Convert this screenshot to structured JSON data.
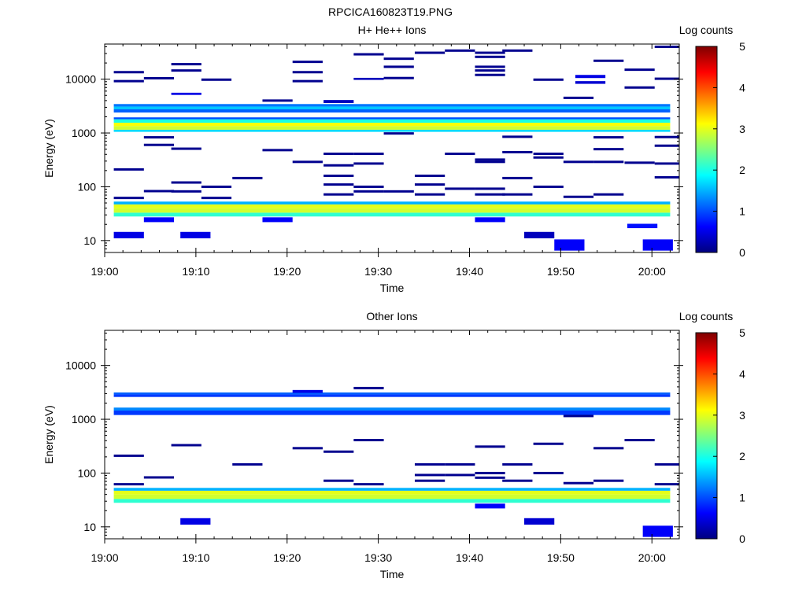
{
  "figure": {
    "title": "RPCICA160823T19.PNG",
    "colorbar_stops": [
      "#00007f",
      "#0000ff",
      "#007fff",
      "#00ffff",
      "#7fff7f",
      "#ffff00",
      "#ff7f00",
      "#ff0000",
      "#7f0000"
    ]
  },
  "chart_data": [
    {
      "type": "heatmap",
      "title": "H+ He++ Ions",
      "xlabel": "Time",
      "ylabel": "Energy (eV)",
      "x_ticks": [
        "19:00",
        "19:10",
        "19:20",
        "19:30",
        "19:40",
        "19:50",
        "20:00"
      ],
      "x_range_minutes": [
        0,
        63
      ],
      "y_scale": "log",
      "y_ticks": [
        "10",
        "100",
        "1000",
        "10000"
      ],
      "y_range": [
        6,
        45000
      ],
      "colorbar_label": "Log counts",
      "colorbar_ticks": [
        "0",
        "1",
        "2",
        "3",
        "4",
        "5"
      ],
      "colorbar_range": [
        0,
        5
      ],
      "bands": [
        {
          "e_low": 28,
          "e_high": 33,
          "level": 2.1
        },
        {
          "e_low": 33,
          "e_high": 40,
          "level": 2.9
        },
        {
          "e_low": 40,
          "e_high": 47,
          "level": 3.0
        },
        {
          "e_low": 47,
          "e_high": 53,
          "level": 1.5
        },
        {
          "e_low": 1050,
          "e_high": 1150,
          "level": 1.7
        },
        {
          "e_low": 1150,
          "e_high": 1350,
          "level": 2.9
        },
        {
          "e_low": 1350,
          "e_high": 1550,
          "level": 3.1
        },
        {
          "e_low": 1550,
          "e_high": 1800,
          "level": 2.0
        },
        {
          "e_low": 1800,
          "e_high": 1950,
          "level": 1.0
        },
        {
          "e_low": 2400,
          "e_high": 2750,
          "level": 1.1
        },
        {
          "e_low": 2750,
          "e_high": 3100,
          "level": 1.6
        },
        {
          "e_low": 3100,
          "e_high": 3450,
          "level": 1.2
        }
      ],
      "cells": [
        {
          "t": 1,
          "e_low": 11,
          "e_high": 14.5,
          "level": 0.5
        },
        {
          "t": 4.3,
          "e_low": 22,
          "e_high": 27,
          "level": 0.6
        },
        {
          "t": 8.3,
          "e_low": 11,
          "e_high": 14.5,
          "level": 0.5
        },
        {
          "t": 17.3,
          "e_low": 22,
          "e_high": 27,
          "level": 0.6
        },
        {
          "t": 40.6,
          "e_low": 22,
          "e_high": 27,
          "level": 0.6
        },
        {
          "t": 46,
          "e_low": 11,
          "e_high": 14.5,
          "level": 0.3
        },
        {
          "t": 49.3,
          "e_low": 6.5,
          "e_high": 10.5,
          "level": 0.6
        },
        {
          "t": 57.3,
          "e_low": 17,
          "e_high": 20.5,
          "level": 0.7
        },
        {
          "t": 59,
          "e_low": 6.5,
          "e_high": 10.5,
          "level": 0.6
        },
        {
          "t": 24,
          "e_low": 3600,
          "e_high": 4100,
          "level": 0.3
        },
        {
          "t": 51.6,
          "e_low": 10500,
          "e_high": 12000,
          "level": 0.5
        },
        {
          "t": 51.6,
          "e_low": 8200,
          "e_high": 9200,
          "level": 0.4
        },
        {
          "t": 7.3,
          "e_low": 5100,
          "e_high": 5600,
          "level": 0.5
        },
        {
          "t": 27.3,
          "e_low": 9700,
          "e_high": 10600,
          "level": 0.3
        }
      ],
      "dashes": [
        {
          "t": 1,
          "e": 13500
        },
        {
          "t": 1,
          "e": 9200
        },
        {
          "t": 1,
          "e": 210
        },
        {
          "t": 1,
          "e": 62
        },
        {
          "t": 4.3,
          "e": 10400
        },
        {
          "t": 4.3,
          "e": 830
        },
        {
          "t": 4.3,
          "e": 600
        },
        {
          "t": 4.3,
          "e": 83
        },
        {
          "t": 7.3,
          "e": 19000
        },
        {
          "t": 7.3,
          "e": 14500
        },
        {
          "t": 7.3,
          "e": 510
        },
        {
          "t": 7.3,
          "e": 120
        },
        {
          "t": 7.3,
          "e": 82
        },
        {
          "t": 10.6,
          "e": 9800
        },
        {
          "t": 10.6,
          "e": 100
        },
        {
          "t": 10.6,
          "e": 62
        },
        {
          "t": 14,
          "e": 145
        },
        {
          "t": 17.3,
          "e": 4000
        },
        {
          "t": 17.3,
          "e": 480
        },
        {
          "t": 20.6,
          "e": 21000
        },
        {
          "t": 20.6,
          "e": 13500
        },
        {
          "t": 20.6,
          "e": 9200
        },
        {
          "t": 20.6,
          "e": 290
        },
        {
          "t": 24,
          "e": 410
        },
        {
          "t": 24,
          "e": 250
        },
        {
          "t": 24,
          "e": 160
        },
        {
          "t": 24,
          "e": 110
        },
        {
          "t": 24,
          "e": 72
        },
        {
          "t": 27.3,
          "e": 29000
        },
        {
          "t": 27.3,
          "e": 410
        },
        {
          "t": 27.3,
          "e": 270
        },
        {
          "t": 27.3,
          "e": 100
        },
        {
          "t": 27.3,
          "e": 82
        },
        {
          "t": 30.6,
          "e": 24000
        },
        {
          "t": 30.6,
          "e": 17000
        },
        {
          "t": 30.6,
          "e": 10500
        },
        {
          "t": 30.6,
          "e": 980
        },
        {
          "t": 30.6,
          "e": 82
        },
        {
          "t": 34,
          "e": 31000
        },
        {
          "t": 34,
          "e": 160
        },
        {
          "t": 34,
          "e": 110
        },
        {
          "t": 34,
          "e": 72
        },
        {
          "t": 37.3,
          "e": 34000
        },
        {
          "t": 37.3,
          "e": 410
        },
        {
          "t": 37.3,
          "e": 92
        },
        {
          "t": 40.6,
          "e": 31000
        },
        {
          "t": 40.6,
          "e": 26000
        },
        {
          "t": 40.6,
          "e": 17000
        },
        {
          "t": 40.6,
          "e": 14500
        },
        {
          "t": 40.6,
          "e": 12000
        },
        {
          "t": 40.6,
          "e": 320
        },
        {
          "t": 40.6,
          "e": 290
        },
        {
          "t": 40.6,
          "e": 92
        },
        {
          "t": 40.6,
          "e": 72
        },
        {
          "t": 43.6,
          "e": 34000
        },
        {
          "t": 43.6,
          "e": 850
        },
        {
          "t": 43.6,
          "e": 440
        },
        {
          "t": 43.6,
          "e": 145
        },
        {
          "t": 43.6,
          "e": 72
        },
        {
          "t": 47,
          "e": 9800
        },
        {
          "t": 47,
          "e": 410
        },
        {
          "t": 47,
          "e": 350
        },
        {
          "t": 47,
          "e": 100
        },
        {
          "t": 50.3,
          "e": 4500
        },
        {
          "t": 50.3,
          "e": 290
        },
        {
          "t": 50.3,
          "e": 65
        },
        {
          "t": 53.6,
          "e": 22000
        },
        {
          "t": 53.6,
          "e": 830
        },
        {
          "t": 53.6,
          "e": 500
        },
        {
          "t": 53.6,
          "e": 290
        },
        {
          "t": 53.6,
          "e": 72
        },
        {
          "t": 57,
          "e": 15000
        },
        {
          "t": 57,
          "e": 7000
        },
        {
          "t": 57,
          "e": 280
        },
        {
          "t": 60.3,
          "e": 40000
        },
        {
          "t": 60.3,
          "e": 10200
        },
        {
          "t": 60.3,
          "e": 840
        },
        {
          "t": 60.3,
          "e": 580
        },
        {
          "t": 60.3,
          "e": 270
        },
        {
          "t": 60.3,
          "e": 150
        }
      ]
    },
    {
      "type": "heatmap",
      "title": "Other Ions",
      "xlabel": "Time",
      "ylabel": "Energy (eV)",
      "x_ticks": [
        "19:00",
        "19:10",
        "19:20",
        "19:30",
        "19:40",
        "19:50",
        "20:00"
      ],
      "x_range_minutes": [
        0,
        63
      ],
      "y_scale": "log",
      "y_ticks": [
        "10",
        "100",
        "1000",
        "10000"
      ],
      "y_range": [
        6,
        45000
      ],
      "colorbar_label": "Log counts",
      "colorbar_ticks": [
        "0",
        "1",
        "2",
        "3",
        "4",
        "5"
      ],
      "colorbar_range": [
        0,
        5
      ],
      "bands": [
        {
          "e_low": 28,
          "e_high": 33,
          "level": 2.1
        },
        {
          "e_low": 33,
          "e_high": 40,
          "level": 2.9
        },
        {
          "e_low": 40,
          "e_high": 47,
          "level": 3.0
        },
        {
          "e_low": 47,
          "e_high": 53,
          "level": 1.5
        },
        {
          "e_low": 1200,
          "e_high": 1450,
          "level": 0.9
        },
        {
          "e_low": 1450,
          "e_high": 1650,
          "level": 1.3
        },
        {
          "e_low": 2600,
          "e_high": 2900,
          "level": 0.9
        },
        {
          "e_low": 2900,
          "e_high": 3150,
          "level": 1.1
        }
      ],
      "cells": [
        {
          "t": 8.3,
          "e_low": 11,
          "e_high": 14.5,
          "level": 0.5
        },
        {
          "t": 40.6,
          "e_low": 22,
          "e_high": 27,
          "level": 0.6
        },
        {
          "t": 46,
          "e_low": 11,
          "e_high": 14.5,
          "level": 0.4
        },
        {
          "t": 59,
          "e_low": 6.5,
          "e_high": 10.5,
          "level": 0.6
        },
        {
          "t": 20.6,
          "e_low": 3100,
          "e_high": 3500,
          "level": 0.5
        }
      ],
      "dashes": [
        {
          "t": 1,
          "e": 210
        },
        {
          "t": 1,
          "e": 62
        },
        {
          "t": 4.3,
          "e": 83
        },
        {
          "t": 7.3,
          "e": 330
        },
        {
          "t": 14,
          "e": 145
        },
        {
          "t": 20.6,
          "e": 290
        },
        {
          "t": 24,
          "e": 250
        },
        {
          "t": 24,
          "e": 72
        },
        {
          "t": 27.3,
          "e": 3800
        },
        {
          "t": 27.3,
          "e": 410
        },
        {
          "t": 27.3,
          "e": 62
        },
        {
          "t": 34,
          "e": 145
        },
        {
          "t": 34,
          "e": 92
        },
        {
          "t": 34,
          "e": 72
        },
        {
          "t": 37.3,
          "e": 145
        },
        {
          "t": 37.3,
          "e": 92
        },
        {
          "t": 40.6,
          "e": 310
        },
        {
          "t": 40.6,
          "e": 100
        },
        {
          "t": 40.6,
          "e": 82
        },
        {
          "t": 43.6,
          "e": 145
        },
        {
          "t": 43.6,
          "e": 72
        },
        {
          "t": 47,
          "e": 350
        },
        {
          "t": 47,
          "e": 100
        },
        {
          "t": 50.3,
          "e": 1150
        },
        {
          "t": 50.3,
          "e": 65
        },
        {
          "t": 53.6,
          "e": 290
        },
        {
          "t": 53.6,
          "e": 72
        },
        {
          "t": 57,
          "e": 410
        },
        {
          "t": 60.3,
          "e": 145
        },
        {
          "t": 60.3,
          "e": 62
        }
      ]
    }
  ]
}
